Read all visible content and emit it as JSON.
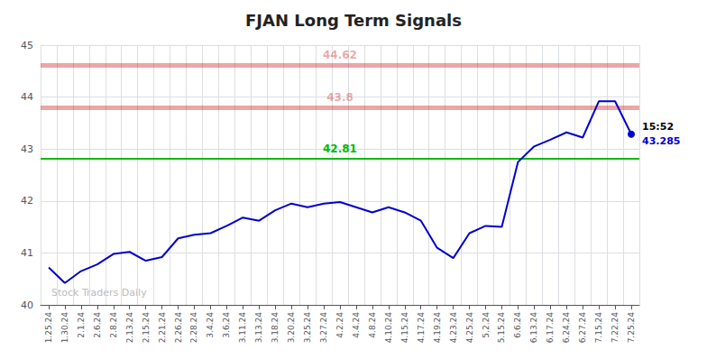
{
  "chart_data": {
    "type": "line",
    "title": "FJAN Long Term Signals",
    "categories": [
      "1.25.24",
      "1.30.24",
      "2.1.24",
      "2.6.24",
      "2.8.24",
      "2.13.24",
      "2.15.24",
      "2.21.24",
      "2.26.24",
      "2.28.24",
      "3.4.24",
      "3.6.24",
      "3.11.24",
      "3.13.24",
      "3.18.24",
      "3.20.24",
      "3.25.24",
      "3.27.24",
      "4.2.24",
      "4.4.24",
      "4.8.24",
      "4.10.24",
      "4.15.24",
      "4.17.24",
      "4.19.24",
      "4.23.24",
      "4.25.24",
      "5.2.24",
      "5.15.24",
      "6.6.24",
      "6.13.24",
      "6.17.24",
      "6.24.24",
      "6.27.24",
      "7.15.24",
      "7.22.24",
      "7.25.24"
    ],
    "values": [
      40.72,
      40.42,
      40.65,
      40.78,
      40.98,
      41.02,
      40.85,
      40.92,
      41.28,
      41.35,
      41.38,
      41.52,
      41.68,
      41.62,
      41.82,
      41.95,
      41.88,
      41.95,
      41.98,
      41.88,
      41.78,
      41.88,
      41.78,
      41.62,
      41.1,
      40.9,
      41.38,
      41.52,
      41.5,
      42.75,
      43.05,
      43.18,
      43.32,
      43.22,
      43.92,
      43.92,
      43.285
    ],
    "color": "#0000cc",
    "ylim": [
      40,
      45
    ],
    "yticks": [
      40,
      41,
      42,
      43,
      44,
      45
    ],
    "grid": true,
    "hlines": [
      {
        "value": 44.62,
        "label": "44.62",
        "color": "#cc0000"
      },
      {
        "value": 43.8,
        "label": "43.8",
        "color": "#cc0000"
      },
      {
        "value": 42.81,
        "label": "42.81",
        "color": "#00bb00"
      }
    ],
    "last_time": "15:52",
    "last_price": "43.285",
    "watermark": "Stock Traders Daily"
  }
}
